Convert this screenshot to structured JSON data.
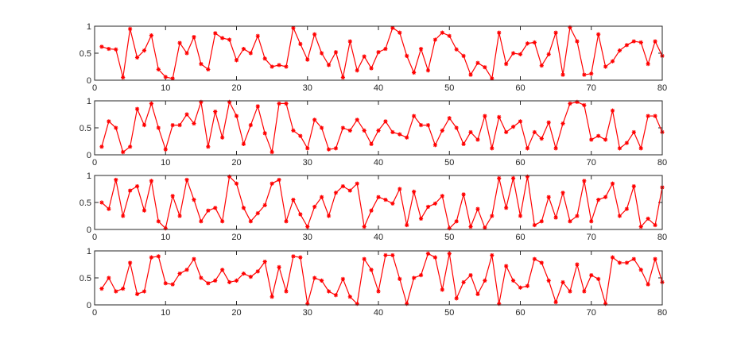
{
  "chart_data": [
    {
      "type": "line",
      "xlim": [
        0,
        80
      ],
      "ylim": [
        0,
        1
      ],
      "x_ticks": [
        0,
        10,
        20,
        30,
        40,
        50,
        60,
        70,
        80
      ],
      "y_ticks": [
        0,
        0.5,
        1
      ],
      "x_tick_labels": [
        "0",
        "10",
        "20",
        "30",
        "40",
        "50",
        "60",
        "70",
        "80"
      ],
      "y_tick_labels": [
        "0",
        "0.5",
        "1"
      ],
      "marker": "*",
      "series": [
        {
          "color": "#ff0000",
          "x": [
            1,
            2,
            3,
            4,
            5,
            6,
            7,
            8,
            9,
            10,
            11,
            12,
            13,
            14,
            15,
            16,
            17,
            18,
            19,
            20,
            21,
            22,
            23,
            24,
            25,
            26,
            27,
            28,
            29,
            30,
            31,
            32,
            33,
            34,
            35,
            36,
            37,
            38,
            39,
            40,
            41,
            42,
            43,
            44,
            45,
            46,
            47,
            48,
            49,
            50,
            51,
            52,
            53,
            54,
            55,
            56,
            57,
            58,
            59,
            60,
            61,
            62,
            63,
            64,
            65,
            66,
            67,
            68,
            69,
            70,
            71,
            72,
            73,
            74,
            75,
            76,
            77,
            78,
            79,
            80
          ],
          "values": [
            0.62,
            0.58,
            0.57,
            0.05,
            0.95,
            0.42,
            0.55,
            0.83,
            0.2,
            0.06,
            0.03,
            0.69,
            0.5,
            0.8,
            0.3,
            0.2,
            0.87,
            0.78,
            0.75,
            0.37,
            0.58,
            0.5,
            0.82,
            0.4,
            0.25,
            0.28,
            0.25,
            0.97,
            0.67,
            0.38,
            0.85,
            0.5,
            0.28,
            0.52,
            0.05,
            0.72,
            0.18,
            0.44,
            0.22,
            0.52,
            0.58,
            0.97,
            0.88,
            0.45,
            0.14,
            0.58,
            0.18,
            0.75,
            0.88,
            0.82,
            0.57,
            0.45,
            0.1,
            0.32,
            0.24,
            0.03,
            0.88,
            0.3,
            0.5,
            0.48,
            0.68,
            0.7,
            0.27,
            0.48,
            0.88,
            0.1,
            0.98,
            0.72,
            0.1,
            0.12,
            0.85,
            0.25,
            0.35,
            0.55,
            0.65,
            0.72,
            0.7,
            0.3,
            0.72,
            0.45
          ]
        }
      ]
    },
    {
      "type": "line",
      "xlim": [
        0,
        80
      ],
      "ylim": [
        0,
        1
      ],
      "x_ticks": [
        0,
        10,
        20,
        30,
        40,
        50,
        60,
        70,
        80
      ],
      "y_ticks": [
        0,
        0.5,
        1
      ],
      "x_tick_labels": [
        "0",
        "10",
        "20",
        "30",
        "40",
        "50",
        "60",
        "70",
        "80"
      ],
      "y_tick_labels": [
        "0",
        "0.5",
        "1"
      ],
      "marker": "*",
      "series": [
        {
          "color": "#ff0000",
          "x": [
            1,
            2,
            3,
            4,
            5,
            6,
            7,
            8,
            9,
            10,
            11,
            12,
            13,
            14,
            15,
            16,
            17,
            18,
            19,
            20,
            21,
            22,
            23,
            24,
            25,
            26,
            27,
            28,
            29,
            30,
            31,
            32,
            33,
            34,
            35,
            36,
            37,
            38,
            39,
            40,
            41,
            42,
            43,
            44,
            45,
            46,
            47,
            48,
            49,
            50,
            51,
            52,
            53,
            54,
            55,
            56,
            57,
            58,
            59,
            60,
            61,
            62,
            63,
            64,
            65,
            66,
            67,
            68,
            69,
            70,
            71,
            72,
            73,
            74,
            75,
            76,
            77,
            78,
            79,
            80
          ],
          "values": [
            0.15,
            0.62,
            0.5,
            0.05,
            0.15,
            0.85,
            0.55,
            0.95,
            0.5,
            0.1,
            0.55,
            0.55,
            0.75,
            0.58,
            0.98,
            0.15,
            0.8,
            0.32,
            0.98,
            0.72,
            0.2,
            0.55,
            0.9,
            0.4,
            0.05,
            0.95,
            0.95,
            0.45,
            0.35,
            0.12,
            0.65,
            0.5,
            0.1,
            0.12,
            0.5,
            0.45,
            0.65,
            0.45,
            0.2,
            0.45,
            0.62,
            0.42,
            0.38,
            0.32,
            0.72,
            0.55,
            0.55,
            0.18,
            0.45,
            0.68,
            0.5,
            0.2,
            0.42,
            0.28,
            0.72,
            0.12,
            0.7,
            0.42,
            0.52,
            0.62,
            0.12,
            0.42,
            0.3,
            0.6,
            0.12,
            0.58,
            0.95,
            0.98,
            0.92,
            0.28,
            0.35,
            0.28,
            0.82,
            0.12,
            0.22,
            0.42,
            0.12,
            0.72,
            0.72,
            0.42
          ]
        }
      ]
    },
    {
      "type": "line",
      "xlim": [
        0,
        80
      ],
      "ylim": [
        0,
        1
      ],
      "x_ticks": [
        0,
        10,
        20,
        30,
        40,
        50,
        60,
        70,
        80
      ],
      "y_ticks": [
        0,
        0.5,
        1
      ],
      "x_tick_labels": [
        "0",
        "10",
        "20",
        "30",
        "40",
        "50",
        "60",
        "70",
        "80"
      ],
      "y_tick_labels": [
        "0",
        "0.5",
        "1"
      ],
      "marker": "*",
      "series": [
        {
          "color": "#ff0000",
          "x": [
            1,
            2,
            3,
            4,
            5,
            6,
            7,
            8,
            9,
            10,
            11,
            12,
            13,
            14,
            15,
            16,
            17,
            18,
            19,
            20,
            21,
            22,
            23,
            24,
            25,
            26,
            27,
            28,
            29,
            30,
            31,
            32,
            33,
            34,
            35,
            36,
            37,
            38,
            39,
            40,
            41,
            42,
            43,
            44,
            45,
            46,
            47,
            48,
            49,
            50,
            51,
            52,
            53,
            54,
            55,
            56,
            57,
            58,
            59,
            60,
            61,
            62,
            63,
            64,
            65,
            66,
            67,
            68,
            69,
            70,
            71,
            72,
            73,
            74,
            75,
            76,
            77,
            78,
            79,
            80
          ],
          "values": [
            0.5,
            0.38,
            0.92,
            0.25,
            0.72,
            0.8,
            0.35,
            0.9,
            0.15,
            0.02,
            0.62,
            0.25,
            0.92,
            0.55,
            0.15,
            0.35,
            0.4,
            0.15,
            0.98,
            0.85,
            0.4,
            0.15,
            0.3,
            0.45,
            0.85,
            0.92,
            0.15,
            0.55,
            0.28,
            0.05,
            0.42,
            0.6,
            0.25,
            0.68,
            0.8,
            0.72,
            0.85,
            0.05,
            0.35,
            0.6,
            0.55,
            0.48,
            0.75,
            0.08,
            0.7,
            0.2,
            0.42,
            0.48,
            0.62,
            0.02,
            0.15,
            0.65,
            0.05,
            0.38,
            0.03,
            0.25,
            0.95,
            0.4,
            0.95,
            0.25,
            0.98,
            0.08,
            0.15,
            0.6,
            0.22,
            0.68,
            0.15,
            0.25,
            0.9,
            0.15,
            0.55,
            0.6,
            0.85,
            0.25,
            0.38,
            0.8,
            0.05,
            0.2,
            0.08,
            0.78
          ]
        }
      ]
    },
    {
      "type": "line",
      "xlim": [
        0,
        80
      ],
      "ylim": [
        0,
        1
      ],
      "x_ticks": [
        0,
        10,
        20,
        30,
        40,
        50,
        60,
        70,
        80
      ],
      "y_ticks": [
        0,
        0.5,
        1
      ],
      "x_tick_labels": [
        "0",
        "10",
        "20",
        "30",
        "40",
        "50",
        "60",
        "70",
        "80"
      ],
      "y_tick_labels": [
        "0",
        "0.5",
        "1"
      ],
      "marker": "*",
      "series": [
        {
          "color": "#ff0000",
          "x": [
            1,
            2,
            3,
            4,
            5,
            6,
            7,
            8,
            9,
            10,
            11,
            12,
            13,
            14,
            15,
            16,
            17,
            18,
            19,
            20,
            21,
            22,
            23,
            24,
            25,
            26,
            27,
            28,
            29,
            30,
            31,
            32,
            33,
            34,
            35,
            36,
            37,
            38,
            39,
            40,
            41,
            42,
            43,
            44,
            45,
            46,
            47,
            48,
            49,
            50,
            51,
            52,
            53,
            54,
            55,
            56,
            57,
            58,
            59,
            60,
            61,
            62,
            63,
            64,
            65,
            66,
            67,
            68,
            69,
            70,
            71,
            72,
            73,
            74,
            75,
            76,
            77,
            78,
            79,
            80
          ],
          "values": [
            0.3,
            0.5,
            0.25,
            0.3,
            0.78,
            0.2,
            0.25,
            0.88,
            0.9,
            0.4,
            0.38,
            0.58,
            0.65,
            0.85,
            0.5,
            0.4,
            0.45,
            0.65,
            0.42,
            0.45,
            0.58,
            0.52,
            0.62,
            0.8,
            0.15,
            0.7,
            0.25,
            0.9,
            0.88,
            0.02,
            0.5,
            0.45,
            0.25,
            0.18,
            0.48,
            0.15,
            0.02,
            0.85,
            0.65,
            0.25,
            0.92,
            0.92,
            0.48,
            0.02,
            0.5,
            0.55,
            0.95,
            0.88,
            0.28,
            0.95,
            0.12,
            0.42,
            0.55,
            0.2,
            0.45,
            0.92,
            0.02,
            0.72,
            0.45,
            0.32,
            0.35,
            0.85,
            0.78,
            0.45,
            0.05,
            0.42,
            0.25,
            0.75,
            0.25,
            0.55,
            0.48,
            0.02,
            0.88,
            0.78,
            0.78,
            0.85,
            0.65,
            0.38,
            0.85,
            0.42
          ]
        }
      ]
    }
  ]
}
